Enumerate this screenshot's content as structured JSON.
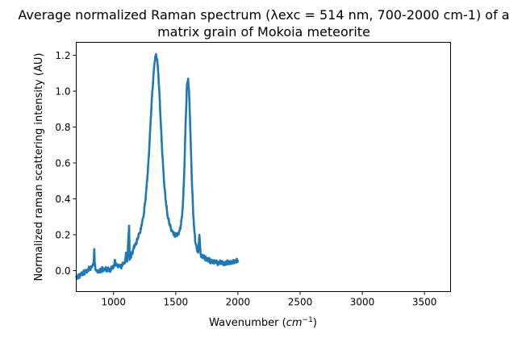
{
  "chart_data": {
    "type": "line",
    "title_line1": "Average normalized Raman spectrum (λexc = 514 nm, 700-2000 cm-1) of a",
    "title_line2": "matrix grain of Mokoia meteorite",
    "xlabel_prefix": "Wavenumber (",
    "xlabel_unit": "cm",
    "xlabel_exp": "−1",
    "xlabel_suffix": ")",
    "ylabel": "Normalized raman scattering intensity (AU)",
    "xlim": [
      700,
      3710
    ],
    "ylim": [
      -0.117,
      1.272
    ],
    "xticks": [
      1000,
      1500,
      2000,
      2500,
      3000,
      3500
    ],
    "yticks": [
      0.0,
      0.2,
      0.4,
      0.6,
      0.8,
      1.0,
      1.2
    ],
    "xtick_labels": [
      "1000",
      "1500",
      "2000",
      "2500",
      "3000",
      "3500"
    ],
    "ytick_labels": [
      "0.0",
      "0.2",
      "0.4",
      "0.6",
      "0.8",
      "1.0",
      "1.2"
    ],
    "grid": false,
    "line_color": "#1f77b4",
    "x": [
      700,
      710,
      720,
      730,
      740,
      750,
      760,
      770,
      780,
      790,
      800,
      810,
      820,
      830,
      840,
      845,
      850,
      860,
      870,
      880,
      890,
      900,
      910,
      920,
      930,
      940,
      950,
      960,
      970,
      980,
      990,
      1000,
      1010,
      1020,
      1030,
      1040,
      1050,
      1060,
      1070,
      1080,
      1090,
      1100,
      1110,
      1125,
      1130,
      1140,
      1150,
      1160,
      1170,
      1180,
      1190,
      1200,
      1210,
      1220,
      1230,
      1240,
      1250,
      1260,
      1270,
      1280,
      1290,
      1300,
      1310,
      1320,
      1330,
      1340,
      1350,
      1360,
      1370,
      1380,
      1390,
      1400,
      1410,
      1420,
      1430,
      1440,
      1450,
      1460,
      1470,
      1480,
      1490,
      1500,
      1510,
      1520,
      1530,
      1540,
      1550,
      1560,
      1570,
      1580,
      1590,
      1600,
      1610,
      1620,
      1630,
      1640,
      1650,
      1660,
      1670,
      1680,
      1690,
      1700,
      1710,
      1720,
      1730,
      1740,
      1750,
      1760,
      1770,
      1780,
      1790,
      1800,
      1820,
      1840,
      1860,
      1880,
      1900,
      1920,
      1940,
      1960,
      1980,
      2000
    ],
    "y": [
      -0.04,
      -0.035,
      -0.03,
      -0.03,
      -0.02,
      -0.02,
      -0.01,
      -0.01,
      0.0,
      0.0,
      0.01,
      0.01,
      0.02,
      0.03,
      0.03,
      0.12,
      0.03,
      0.0,
      -0.01,
      0.0,
      0.0,
      0.0,
      0.01,
      0.0,
      0.01,
      0.01,
      0.0,
      0.01,
      0.0,
      0.01,
      0.02,
      0.02,
      0.06,
      0.03,
      0.03,
      0.02,
      0.03,
      0.02,
      0.03,
      0.04,
      0.04,
      0.1,
      0.05,
      0.25,
      0.06,
      0.08,
      0.1,
      0.12,
      0.14,
      0.15,
      0.17,
      0.19,
      0.21,
      0.23,
      0.27,
      0.3,
      0.36,
      0.42,
      0.5,
      0.6,
      0.72,
      0.85,
      0.98,
      1.08,
      1.16,
      1.2,
      1.18,
      1.1,
      0.97,
      0.82,
      0.68,
      0.56,
      0.46,
      0.39,
      0.33,
      0.29,
      0.26,
      0.24,
      0.22,
      0.21,
      0.2,
      0.2,
      0.2,
      0.21,
      0.22,
      0.25,
      0.3,
      0.4,
      0.58,
      0.83,
      1.03,
      1.07,
      0.95,
      0.72,
      0.5,
      0.33,
      0.22,
      0.15,
      0.12,
      0.1,
      0.2,
      0.09,
      0.08,
      0.08,
      0.07,
      0.07,
      0.06,
      0.06,
      0.06,
      0.05,
      0.05,
      0.05,
      0.05,
      0.04,
      0.05,
      0.04,
      0.04,
      0.05,
      0.04,
      0.05,
      0.05,
      0.06
    ]
  }
}
